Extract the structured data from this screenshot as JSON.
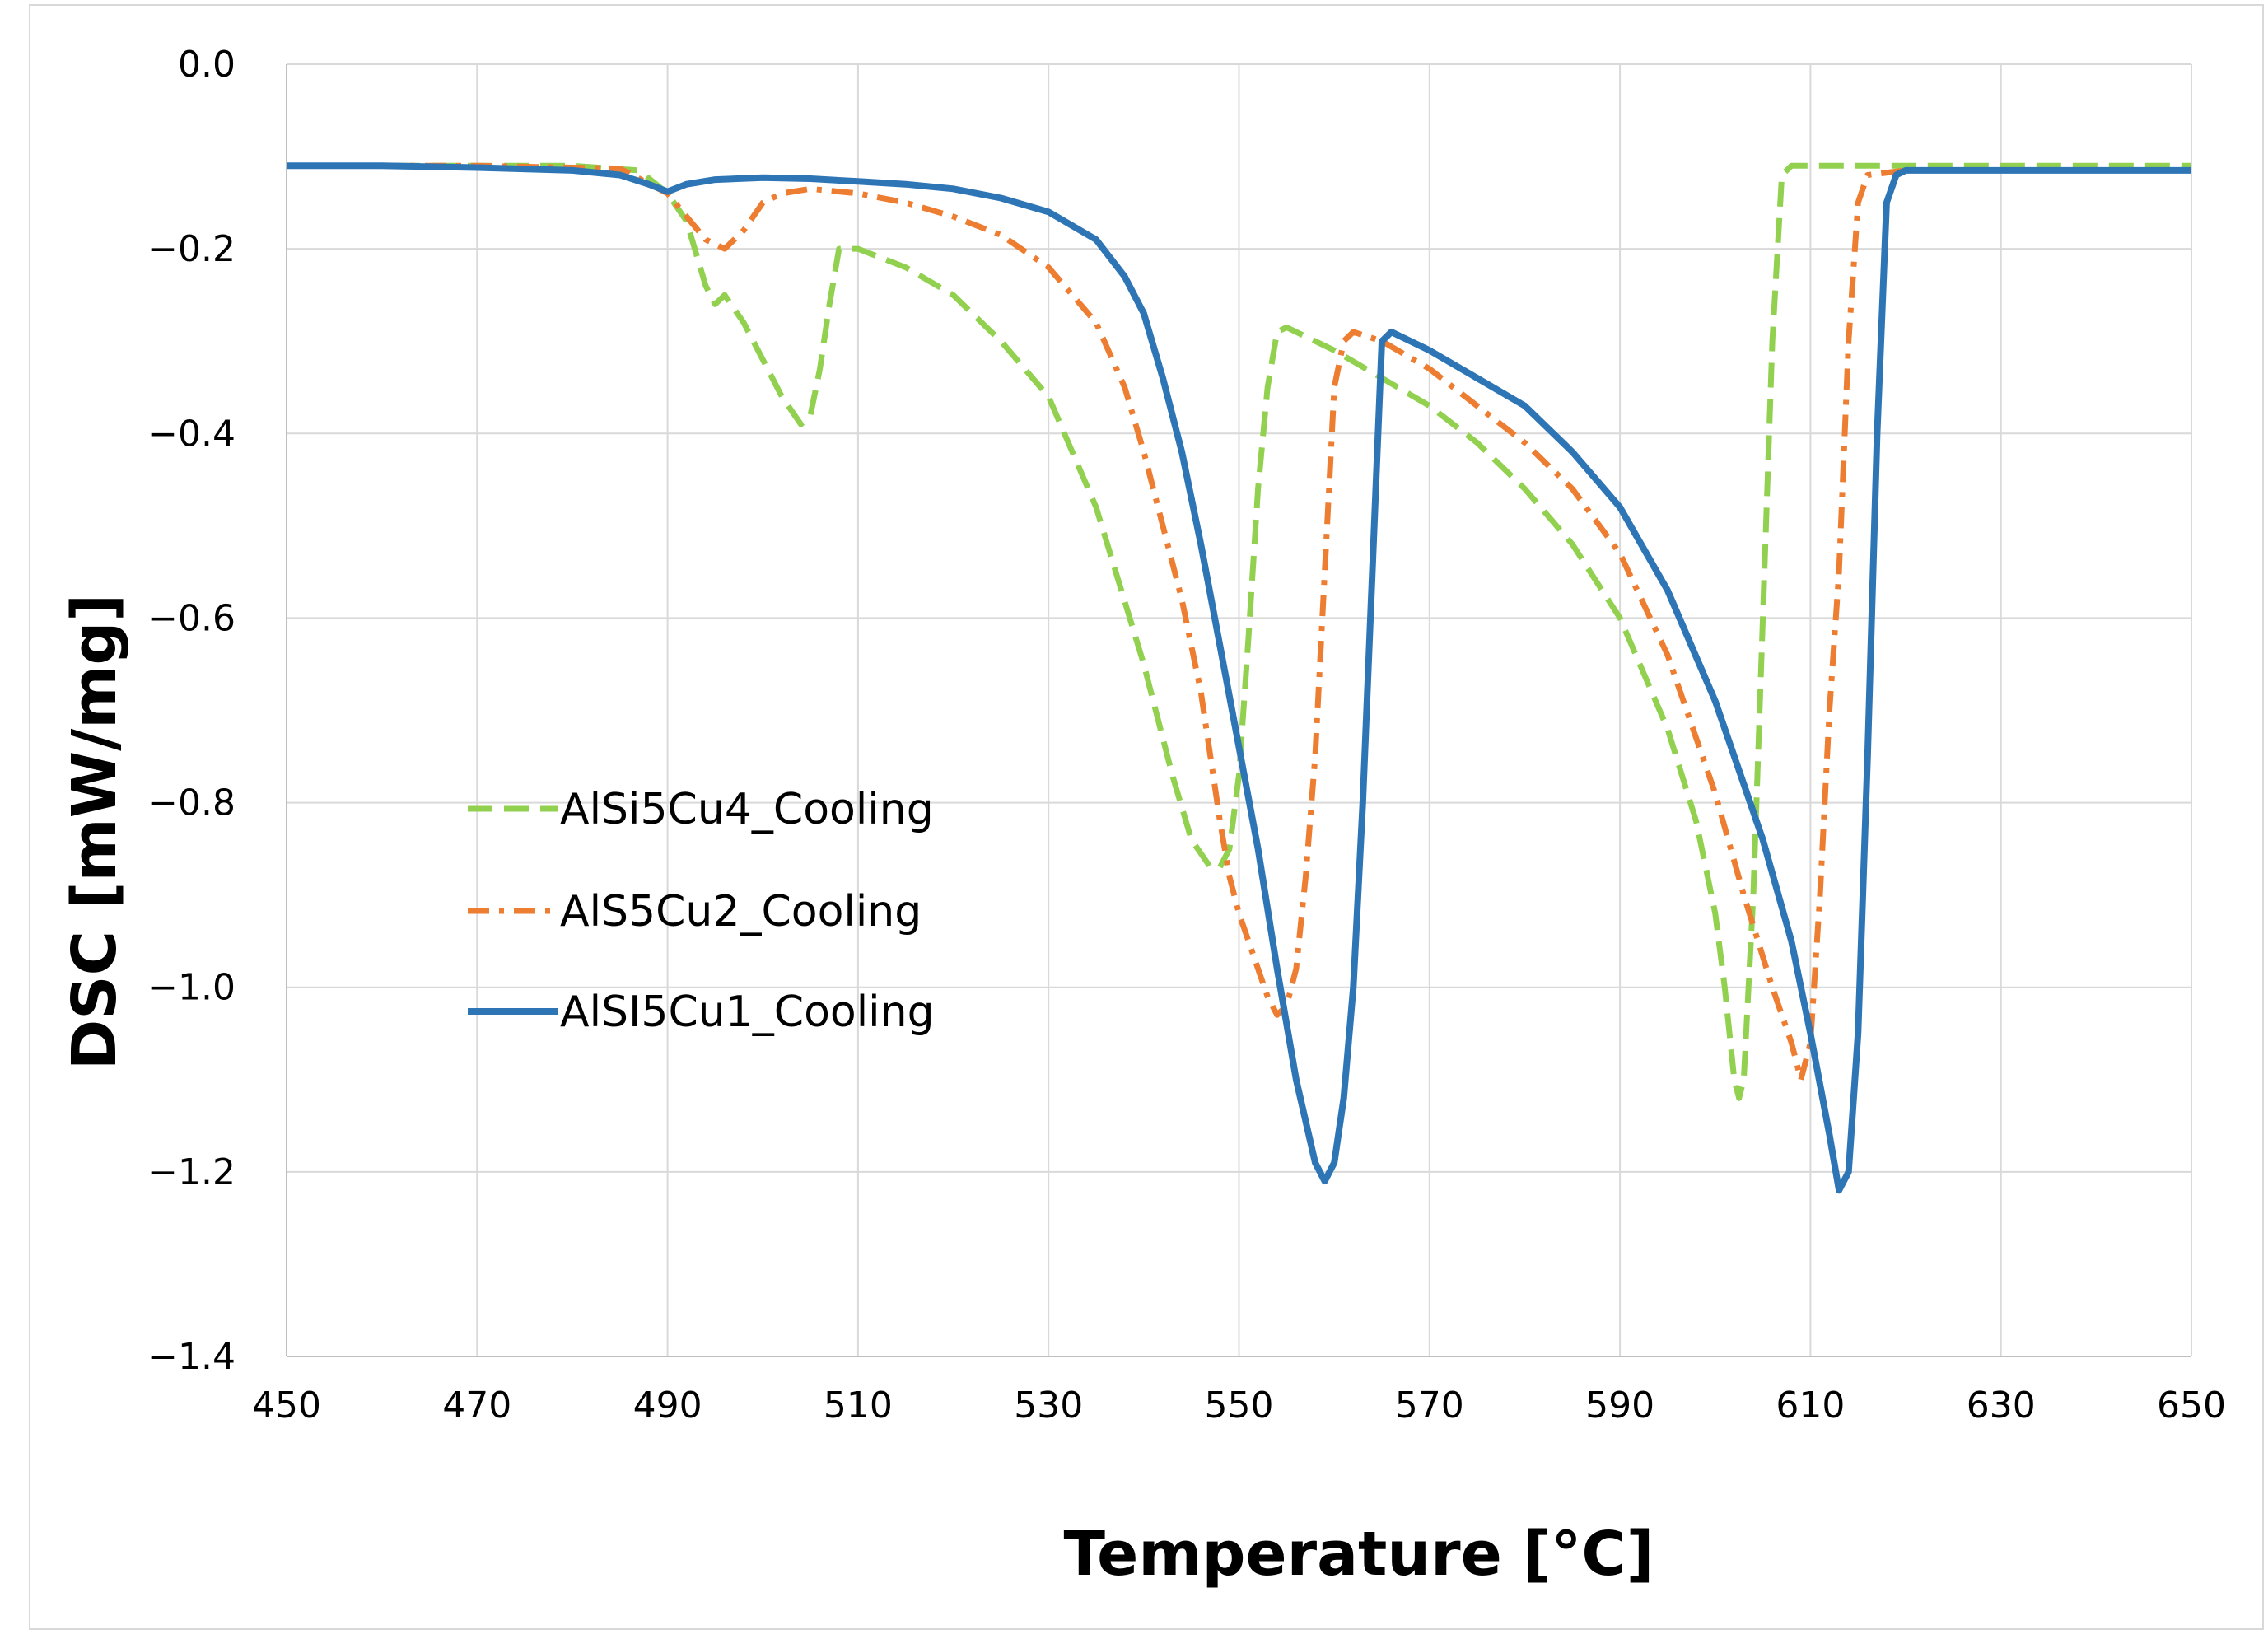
{
  "chart_data": {
    "type": "line",
    "title": "",
    "xlabel": "Temperature [°C]",
    "ylabel": "DSC [mW/mg]",
    "xlim": [
      450,
      650
    ],
    "ylim": [
      -1.4,
      0.0
    ],
    "x_ticks": [
      450,
      470,
      490,
      510,
      530,
      550,
      570,
      590,
      610,
      630,
      650
    ],
    "y_ticks": [
      0.0,
      -0.2,
      -0.4,
      -0.6,
      -0.8,
      -1.0,
      -1.2,
      -1.4
    ],
    "x_tick_labels": [
      "450",
      "470",
      "490",
      "510",
      "530",
      "550",
      "570",
      "590",
      "610",
      "630",
      "650"
    ],
    "y_tick_labels": [
      "0.0",
      "−0.2",
      "−0.4",
      "−0.6",
      "−0.8",
      "−1.0",
      "−1.2",
      "−1.4"
    ],
    "grid": true,
    "legend_position": "center-left",
    "series": [
      {
        "name": "AlSi5Cu4_Cooling",
        "color": "#92d050",
        "dash": "dashed",
        "points": [
          [
            450,
            -0.11
          ],
          [
            460,
            -0.11
          ],
          [
            470,
            -0.11
          ],
          [
            480,
            -0.11
          ],
          [
            487,
            -0.115
          ],
          [
            490,
            -0.14
          ],
          [
            492,
            -0.17
          ],
          [
            494,
            -0.24
          ],
          [
            495,
            -0.26
          ],
          [
            496,
            -0.25
          ],
          [
            498,
            -0.28
          ],
          [
            500,
            -0.32
          ],
          [
            502,
            -0.36
          ],
          [
            504,
            -0.39
          ],
          [
            505,
            -0.38
          ],
          [
            506,
            -0.33
          ],
          [
            507,
            -0.26
          ],
          [
            508,
            -0.2
          ],
          [
            510,
            -0.2
          ],
          [
            515,
            -0.22
          ],
          [
            520,
            -0.25
          ],
          [
            525,
            -0.3
          ],
          [
            530,
            -0.36
          ],
          [
            535,
            -0.48
          ],
          [
            540,
            -0.65
          ],
          [
            543,
            -0.77
          ],
          [
            545,
            -0.84
          ],
          [
            547,
            -0.87
          ],
          [
            548,
            -0.87
          ],
          [
            549,
            -0.85
          ],
          [
            550,
            -0.77
          ],
          [
            551,
            -0.62
          ],
          [
            552,
            -0.46
          ],
          [
            553,
            -0.35
          ],
          [
            554,
            -0.29
          ],
          [
            555,
            -0.285
          ],
          [
            560,
            -0.31
          ],
          [
            565,
            -0.34
          ],
          [
            570,
            -0.37
          ],
          [
            575,
            -0.41
          ],
          [
            580,
            -0.46
          ],
          [
            585,
            -0.52
          ],
          [
            590,
            -0.6
          ],
          [
            595,
            -0.72
          ],
          [
            598,
            -0.82
          ],
          [
            600,
            -0.92
          ],
          [
            601,
            -1.0
          ],
          [
            602,
            -1.1
          ],
          [
            602.5,
            -1.12
          ],
          [
            603,
            -1.1
          ],
          [
            604,
            -0.9
          ],
          [
            605,
            -0.6
          ],
          [
            606,
            -0.3
          ],
          [
            607,
            -0.12
          ],
          [
            608,
            -0.11
          ],
          [
            610,
            -0.11
          ],
          [
            620,
            -0.11
          ],
          [
            630,
            -0.11
          ],
          [
            640,
            -0.11
          ],
          [
            650,
            -0.11
          ]
        ]
      },
      {
        "name": "AlS5Cu2_Cooling",
        "color": "#ed7d31",
        "dash": "dashdot",
        "points": [
          [
            450,
            -0.11
          ],
          [
            470,
            -0.11
          ],
          [
            485,
            -0.113
          ],
          [
            490,
            -0.14
          ],
          [
            492,
            -0.165
          ],
          [
            494,
            -0.19
          ],
          [
            496,
            -0.2
          ],
          [
            498,
            -0.18
          ],
          [
            500,
            -0.15
          ],
          [
            502,
            -0.14
          ],
          [
            505,
            -0.135
          ],
          [
            510,
            -0.14
          ],
          [
            515,
            -0.15
          ],
          [
            520,
            -0.165
          ],
          [
            525,
            -0.185
          ],
          [
            530,
            -0.22
          ],
          [
            535,
            -0.28
          ],
          [
            538,
            -0.35
          ],
          [
            540,
            -0.42
          ],
          [
            542,
            -0.5
          ],
          [
            544,
            -0.58
          ],
          [
            546,
            -0.68
          ],
          [
            547,
            -0.75
          ],
          [
            548,
            -0.82
          ],
          [
            549,
            -0.88
          ],
          [
            550,
            -0.92
          ],
          [
            551,
            -0.95
          ],
          [
            552,
            -0.98
          ],
          [
            553,
            -1.01
          ],
          [
            554,
            -1.03
          ],
          [
            555,
            -1.02
          ],
          [
            556,
            -0.98
          ],
          [
            557,
            -0.88
          ],
          [
            558,
            -0.75
          ],
          [
            559,
            -0.55
          ],
          [
            560,
            -0.35
          ],
          [
            561,
            -0.3
          ],
          [
            562,
            -0.29
          ],
          [
            565,
            -0.3
          ],
          [
            570,
            -0.33
          ],
          [
            575,
            -0.37
          ],
          [
            580,
            -0.41
          ],
          [
            585,
            -0.46
          ],
          [
            590,
            -0.53
          ],
          [
            595,
            -0.64
          ],
          [
            600,
            -0.79
          ],
          [
            603,
            -0.9
          ],
          [
            606,
            -1.0
          ],
          [
            608,
            -1.06
          ],
          [
            609,
            -1.1
          ],
          [
            610,
            -1.06
          ],
          [
            611,
            -0.9
          ],
          [
            612,
            -0.7
          ],
          [
            613,
            -0.55
          ],
          [
            614,
            -0.3
          ],
          [
            615,
            -0.15
          ],
          [
            616,
            -0.12
          ],
          [
            620,
            -0.115
          ],
          [
            630,
            -0.115
          ],
          [
            640,
            -0.115
          ],
          [
            650,
            -0.115
          ]
        ]
      },
      {
        "name": "AlSI5Cu1_Cooling",
        "color": "#2e75b6",
        "dash": "solid",
        "points": [
          [
            450,
            -0.11
          ],
          [
            460,
            -0.11
          ],
          [
            470,
            -0.112
          ],
          [
            480,
            -0.115
          ],
          [
            485,
            -0.12
          ],
          [
            488,
            -0.13
          ],
          [
            490,
            -0.138
          ],
          [
            492,
            -0.13
          ],
          [
            495,
            -0.125
          ],
          [
            500,
            -0.123
          ],
          [
            505,
            -0.124
          ],
          [
            510,
            -0.127
          ],
          [
            515,
            -0.13
          ],
          [
            520,
            -0.135
          ],
          [
            525,
            -0.145
          ],
          [
            530,
            -0.16
          ],
          [
            535,
            -0.19
          ],
          [
            538,
            -0.23
          ],
          [
            540,
            -0.27
          ],
          [
            542,
            -0.34
          ],
          [
            544,
            -0.42
          ],
          [
            546,
            -0.52
          ],
          [
            548,
            -0.63
          ],
          [
            550,
            -0.74
          ],
          [
            552,
            -0.85
          ],
          [
            554,
            -0.98
          ],
          [
            556,
            -1.1
          ],
          [
            558,
            -1.19
          ],
          [
            559,
            -1.21
          ],
          [
            560,
            -1.19
          ],
          [
            561,
            -1.12
          ],
          [
            562,
            -1.0
          ],
          [
            563,
            -0.8
          ],
          [
            564,
            -0.55
          ],
          [
            565,
            -0.3
          ],
          [
            566,
            -0.29
          ],
          [
            570,
            -0.31
          ],
          [
            575,
            -0.34
          ],
          [
            580,
            -0.37
          ],
          [
            585,
            -0.42
          ],
          [
            590,
            -0.48
          ],
          [
            595,
            -0.57
          ],
          [
            600,
            -0.69
          ],
          [
            605,
            -0.84
          ],
          [
            608,
            -0.95
          ],
          [
            610,
            -1.05
          ],
          [
            612,
            -1.16
          ],
          [
            613,
            -1.22
          ],
          [
            614,
            -1.2
          ],
          [
            615,
            -1.05
          ],
          [
            616,
            -0.75
          ],
          [
            617,
            -0.4
          ],
          [
            618,
            -0.15
          ],
          [
            619,
            -0.12
          ],
          [
            620,
            -0.115
          ],
          [
            630,
            -0.115
          ],
          [
            640,
            -0.115
          ],
          [
            650,
            -0.115
          ]
        ]
      }
    ]
  }
}
